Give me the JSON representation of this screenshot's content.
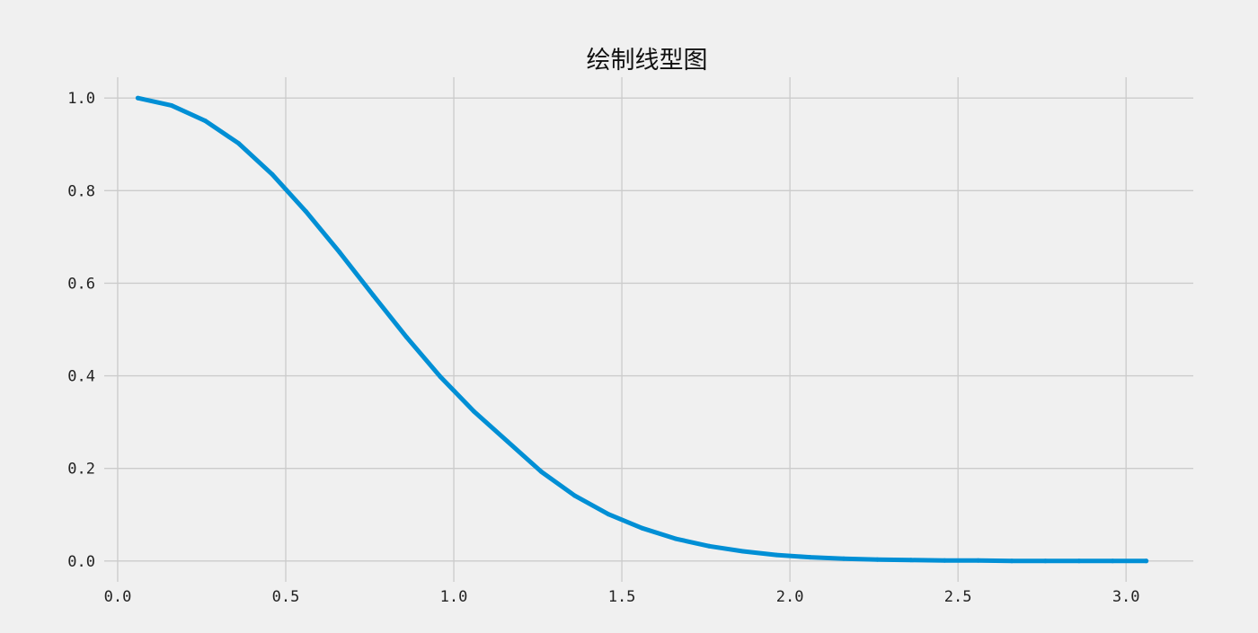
{
  "chart_data": {
    "type": "line",
    "title": "绘制线型图",
    "xlim": [
      -0.04,
      3.2
    ],
    "ylim": [
      -0.045,
      1.045
    ],
    "xticks": [
      0.0,
      0.5,
      1.0,
      1.5,
      2.0,
      2.5,
      3.0
    ],
    "xtick_labels": [
      "0.0",
      "0.5",
      "1.0",
      "1.5",
      "2.0",
      "2.5",
      "3.0"
    ],
    "yticks": [
      0.0,
      0.2,
      0.4,
      0.6,
      0.8,
      1.0
    ],
    "ytick_labels": [
      "0.0",
      "0.2",
      "0.4",
      "0.6",
      "0.8",
      "1.0"
    ],
    "grid": true,
    "colors": {
      "background": "#f0f0f0",
      "grid": "#cbcbcb",
      "line": "#008fd5",
      "text": "#222222"
    },
    "series": [
      {
        "x": [
          0.06,
          0.16,
          0.26,
          0.36,
          0.46,
          0.56,
          0.66,
          0.76,
          0.86,
          0.96,
          1.06,
          1.16,
          1.26,
          1.36,
          1.46,
          1.56,
          1.66,
          1.76,
          1.86,
          1.96,
          2.06,
          2.16,
          2.26,
          2.36,
          2.46,
          2.56,
          2.66,
          2.76,
          2.86,
          2.96,
          3.06
        ],
        "values": [
          1.0,
          0.984,
          0.951,
          0.902,
          0.835,
          0.755,
          0.667,
          0.574,
          0.483,
          0.398,
          0.323,
          0.258,
          0.193,
          0.141,
          0.101,
          0.071,
          0.048,
          0.032,
          0.021,
          0.013,
          0.008,
          0.005,
          0.003,
          0.002,
          0.001,
          0.001,
          0.0,
          0.0,
          0.0,
          0.0,
          0.0
        ]
      }
    ]
  }
}
